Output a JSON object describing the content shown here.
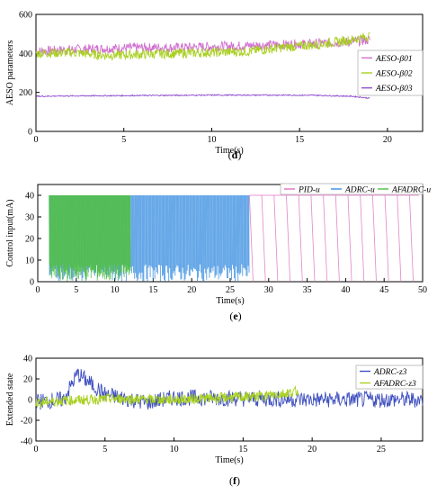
{
  "chart_data": [
    {
      "type": "line",
      "caption": "(d)",
      "xlabel": "Time(s)",
      "ylabel": "AESO parameters",
      "xlim": [
        0,
        22
      ],
      "ylim": [
        0,
        600
      ],
      "xticks": [
        0,
        5,
        10,
        15,
        20
      ],
      "yticks": [
        0,
        200,
        400,
        600
      ],
      "legend_position": "right",
      "series": [
        {
          "name": "AESO-β01",
          "color": "#d070d0",
          "x": [
            0,
            2,
            4,
            6,
            8,
            10,
            12,
            14,
            16,
            18,
            19
          ],
          "y": [
            410,
            420,
            425,
            430,
            430,
            435,
            440,
            445,
            450,
            460,
            470
          ]
        },
        {
          "name": "AESO-β02",
          "color": "#a8d020",
          "x": [
            0,
            2,
            4,
            6,
            8,
            10,
            12,
            14,
            16,
            18,
            19
          ],
          "y": [
            400,
            405,
            390,
            395,
            400,
            405,
            410,
            430,
            445,
            470,
            490
          ]
        },
        {
          "name": "AESO-β03",
          "color": "#9050d0",
          "x": [
            0,
            2,
            4,
            6,
            8,
            10,
            12,
            14,
            16,
            18,
            19
          ],
          "y": [
            180,
            182,
            183,
            184,
            185,
            186,
            186,
            186,
            185,
            180,
            170
          ]
        }
      ]
    },
    {
      "type": "line",
      "caption": "(e)",
      "xlabel": "Time(s)",
      "ylabel": "Control input(mA)",
      "xlim": [
        0,
        50
      ],
      "ylim": [
        0,
        45
      ],
      "xticks": [
        0,
        5,
        10,
        15,
        20,
        25,
        30,
        35,
        40,
        45,
        50
      ],
      "yticks": [
        0,
        10,
        20,
        30,
        40
      ],
      "legend_position": "top",
      "series": [
        {
          "name": "PID-u",
          "color": "#e070c0",
          "x": [
            27.5,
            29,
            31,
            33,
            35,
            37,
            39,
            41,
            43,
            45,
            47,
            49
          ],
          "y": [
            40,
            40,
            40,
            40,
            40,
            40,
            40,
            40,
            40,
            40,
            40,
            40
          ]
        },
        {
          "name": "ADRC-u",
          "color": "#3a8ee0",
          "x": [
            1.5,
            5,
            10,
            15,
            20,
            25,
            27.5
          ],
          "y": [
            40,
            38,
            36,
            40,
            39,
            40,
            40
          ]
        },
        {
          "name": "AFADRC-u",
          "color": "#50c040",
          "x": [
            1.5,
            4,
            6,
            8,
            10,
            12
          ],
          "y": [
            40,
            38,
            40,
            37,
            40,
            35
          ]
        }
      ]
    },
    {
      "type": "line",
      "caption": "(f)",
      "xlabel": "Time(s)",
      "ylabel": "Extended state",
      "xlim": [
        0,
        28
      ],
      "ylim": [
        -40,
        40
      ],
      "xticks": [
        0,
        5,
        10,
        15,
        20,
        25
      ],
      "yticks": [
        -40,
        -20,
        0,
        20,
        40
      ],
      "legend_position": "right",
      "series": [
        {
          "name": "ADRC-z3",
          "color": "#4050c0",
          "x": [
            0,
            2,
            3,
            5,
            8,
            10,
            15,
            20,
            25,
            28
          ],
          "y": [
            -2,
            0,
            25,
            5,
            -3,
            2,
            1,
            0,
            0,
            0
          ]
        },
        {
          "name": "AFADRC-z3",
          "color": "#a8d020",
          "x": [
            0,
            2,
            4,
            6,
            8,
            10,
            12,
            14,
            16,
            18,
            19
          ],
          "y": [
            -3,
            -1,
            0,
            1,
            0,
            0,
            1,
            2,
            3,
            6,
            8
          ]
        }
      ]
    }
  ]
}
